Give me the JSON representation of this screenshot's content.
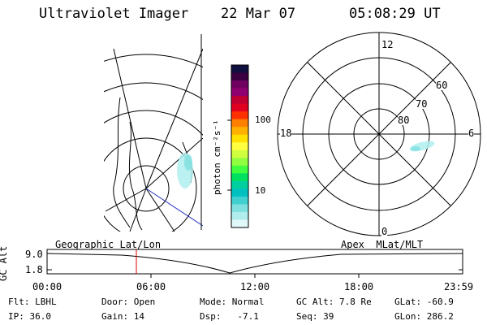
{
  "header": {
    "title": "Ultraviolet Imager",
    "date": "22 Mar 07",
    "time": "05:08:29 UT"
  },
  "colorbar": {
    "label": "photon cm⁻²s⁻¹",
    "ticks": [
      "100",
      "10"
    ],
    "colors": [
      "#101040",
      "#3a0040",
      "#700060",
      "#900070",
      "#c00030",
      "#e00020",
      "#ff3000",
      "#ff8000",
      "#ffb000",
      "#ffe000",
      "#ffff40",
      "#d0ff40",
      "#90ff40",
      "#40ff40",
      "#00e060",
      "#00d0a0",
      "#00c0c0",
      "#40d0d0",
      "#80e0e0",
      "#b0eeee",
      "#e0f8f8"
    ]
  },
  "polar": {
    "mlat_labels": [
      "60",
      "70",
      "80"
    ],
    "mlt_labels": [
      "12",
      "18",
      "6",
      "0"
    ]
  },
  "timeline": {
    "ylabel": "GC Alt",
    "yticks": [
      "9.0",
      "1.8"
    ],
    "left_label": "Geographic Lat/Lon",
    "right_label": "Apex  MLat/MLT",
    "xticks": [
      "00:00",
      "06:00",
      "12:00",
      "18:00",
      "23:59"
    ],
    "marker_time": "05:08"
  },
  "footer": {
    "row1": [
      {
        "k": "Flt:",
        "v": "LBHL"
      },
      {
        "k": "Door:",
        "v": "Open"
      },
      {
        "k": "Mode:",
        "v": "Normal"
      },
      {
        "k": "GC Alt:",
        "v": "7.8 Re"
      },
      {
        "k": "GLat:",
        "v": "-60.9"
      }
    ],
    "row2": [
      {
        "k": "IP:",
        "v": "36.0"
      },
      {
        "k": "Gain:",
        "v": "14"
      },
      {
        "k": "Dsp:",
        "v": "  -7.1"
      },
      {
        "k": "Seq:",
        "v": "39"
      },
      {
        "k": "GLon:",
        "v": "286.2"
      }
    ]
  }
}
